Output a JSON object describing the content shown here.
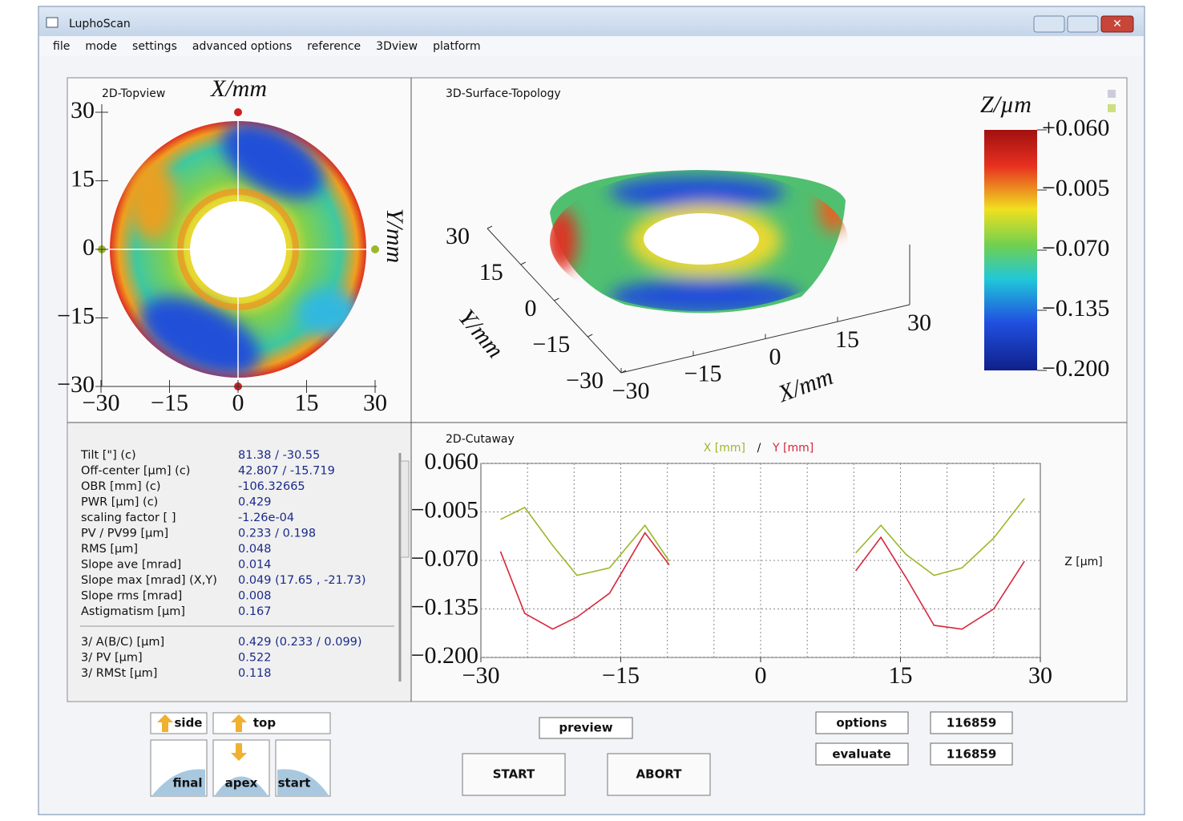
{
  "window": {
    "title": "LuphoScan"
  },
  "menu": [
    "file",
    "mode",
    "settings",
    "advanced options",
    "reference",
    "3Dview",
    "platform"
  ],
  "topview": {
    "title": "2D-Topview",
    "xlabel": "X/mm",
    "ylabel": "Y/mm",
    "xticks": [
      {
        "value": -30,
        "label": "−30"
      },
      {
        "value": -15,
        "label": "−15"
      },
      0,
      15,
      30
    ],
    "yticks": [
      30,
      15,
      0,
      {
        "value": -15,
        "label": "−15"
      },
      {
        "value": -30,
        "label": "−30"
      }
    ]
  },
  "surface": {
    "title": "3D-Surface-Topology",
    "xlabel": "X/mm",
    "ylabel": "Y/mm",
    "xticks": [
      {
        "value": -30,
        "label": "−30"
      },
      {
        "value": -15,
        "label": "−15"
      },
      0,
      15,
      30
    ],
    "yticks": [
      30,
      15,
      0,
      {
        "value": -15,
        "label": "−15"
      },
      {
        "value": -30,
        "label": "−30"
      }
    ]
  },
  "colorbar": {
    "label": "Z/µm",
    "ticks": [
      {
        "value": 0.06,
        "label": "+0.060"
      },
      {
        "value": -0.005,
        "label": "−0.005"
      },
      {
        "value": -0.07,
        "label": "−0.070"
      },
      {
        "value": -0.135,
        "label": "−0.135"
      },
      {
        "value": -0.2,
        "label": "−0.200"
      }
    ]
  },
  "parameters": {
    "rows": [
      [
        "Tilt [\"]  (c)",
        "81.38 / -30.55"
      ],
      [
        "Off-center [µm]  (c)",
        "42.807 / -15.719"
      ],
      [
        "OBR [mm]  (c)",
        "-106.32665"
      ],
      [
        "PWR [µm]  (c)",
        "0.429"
      ],
      [
        "scaling factor [ ]",
        "-1.26e-04"
      ],
      [
        "PV / PV99 [µm]",
        "0.233 / 0.198"
      ],
      [
        "RMS [µm]",
        "0.048"
      ],
      [
        "Slope ave [mrad]",
        "0.014"
      ],
      [
        "Slope max [mrad] (X,Y)",
        "0.049  (17.65 , -21.73)"
      ],
      [
        "Slope rms [mrad]",
        "0.008"
      ],
      [
        "Astigmatism [µm]",
        "0.167"
      ]
    ],
    "totals": [
      [
        "3/ A(B/C) [µm]",
        "0.429 (0.233 / 0.099)"
      ],
      [
        "3/ PV [µm]",
        "0.522"
      ],
      [
        "3/ RMSt [µm]",
        "0.118"
      ]
    ]
  },
  "chart_data": {
    "type": "line",
    "title": "2D-Cutaway",
    "ylabel": "Z [µm]",
    "legend_separator": "/",
    "x": [
      -27.9,
      -25.3,
      -22.3,
      -19.7,
      -16.2,
      -12.4,
      -9.8,
      0,
      10.2,
      12.9,
      15.6,
      18.6,
      21.6,
      25.0,
      28.3
    ],
    "series": [
      {
        "name": "X [mm]",
        "color": "#9ab82a",
        "values": [
          -0.015,
          0.001,
          -0.05,
          -0.09,
          -0.08,
          -0.023,
          -0.071,
          null,
          -0.06,
          -0.023,
          -0.062,
          -0.09,
          -0.08,
          -0.04,
          0.013
        ]
      },
      {
        "name": "Y [mm]",
        "color": "#d8263c",
        "values": [
          -0.058,
          -0.141,
          -0.162,
          -0.146,
          -0.114,
          -0.033,
          -0.076,
          null,
          -0.084,
          -0.039,
          -0.093,
          -0.157,
          -0.162,
          -0.135,
          -0.071
        ]
      }
    ],
    "xlim": [
      -30,
      30
    ],
    "ylim": [
      -0.2,
      0.06
    ],
    "xticks": [
      {
        "value": -30,
        "label": "−30"
      },
      {
        "value": -15,
        "label": "−15"
      },
      0,
      15,
      30
    ],
    "yticks": [
      {
        "value": 0.06,
        "label": "0.060"
      },
      {
        "value": -0.005,
        "label": "−0.005"
      },
      {
        "value": -0.07,
        "label": "−0.070"
      },
      {
        "value": -0.135,
        "label": "−0.135"
      },
      {
        "value": -0.2,
        "label": "−0.200"
      }
    ],
    "grid": true
  },
  "controls": {
    "side": "side",
    "top": "top",
    "final": "final",
    "apex": "apex",
    "start": "start",
    "preview": "preview",
    "run": "START",
    "abort": "ABORT",
    "options": "options",
    "evaluate": "evaluate",
    "counters": [
      "116859",
      "116859"
    ]
  }
}
